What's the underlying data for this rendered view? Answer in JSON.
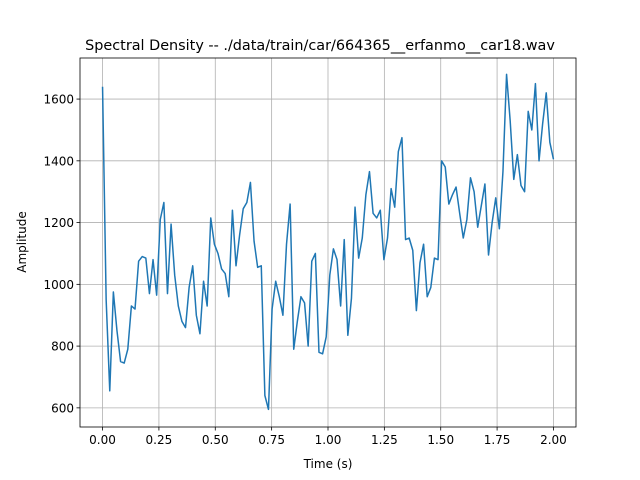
{
  "chart_data": {
    "type": "line",
    "title": "Spectral Density -- ./data/train/car/664365__erfanmo__car18.wav",
    "x_label": "Time (s)",
    "y_label": "Amplitude",
    "x": [
      0,
      0.016,
      0.032,
      0.048,
      0.064,
      0.08,
      0.096,
      0.112,
      0.128,
      0.144,
      0.16,
      0.176,
      0.192,
      0.208,
      0.224,
      0.24,
      0.256,
      0.272,
      0.288,
      0.304,
      0.32,
      0.336,
      0.352,
      0.368,
      0.384,
      0.4,
      0.416,
      0.432,
      0.448,
      0.464,
      0.48,
      0.496,
      0.512,
      0.528,
      0.544,
      0.56,
      0.576,
      0.592,
      0.608,
      0.624,
      0.64,
      0.656,
      0.672,
      0.688,
      0.704,
      0.72,
      0.736,
      0.752,
      0.768,
      0.784,
      0.8,
      0.816,
      0.832,
      0.848,
      0.864,
      0.88,
      0.896,
      0.912,
      0.928,
      0.944,
      0.96,
      0.976,
      0.992,
      1.008,
      1.024,
      1.04,
      1.056,
      1.072,
      1.088,
      1.104,
      1.12,
      1.136,
      1.152,
      1.168,
      1.184,
      1.2,
      1.216,
      1.232,
      1.248,
      1.264,
      1.28,
      1.296,
      1.312,
      1.328,
      1.344,
      1.36,
      1.376,
      1.392,
      1.408,
      1.424,
      1.44,
      1.456,
      1.472,
      1.488,
      1.504,
      1.52,
      1.536,
      1.552,
      1.568,
      1.584,
      1.6,
      1.616,
      1.632,
      1.648,
      1.664,
      1.68,
      1.696,
      1.712,
      1.728,
      1.744,
      1.76,
      1.776,
      1.792,
      1.808,
      1.824,
      1.84,
      1.856,
      1.872,
      1.888,
      1.904,
      1.92,
      1.936,
      1.952,
      1.968,
      1.984,
      2.0
    ],
    "series": [
      {
        "color": "#1f77b4",
        "values": [
          1640,
          950,
          655,
          975,
          850,
          750,
          745,
          790,
          930,
          920,
          1075,
          1090,
          1085,
          970,
          1080,
          965,
          1210,
          1265,
          970,
          1195,
          1030,
          930,
          880,
          860,
          990,
          1060,
          900,
          840,
          1010,
          930,
          1215,
          1130,
          1100,
          1050,
          1035,
          960,
          1240,
          1060,
          1160,
          1245,
          1265,
          1330,
          1140,
          1055,
          1060,
          640,
          595,
          920,
          1010,
          960,
          900,
          1130,
          1260,
          790,
          880,
          960,
          940,
          800,
          1075,
          1100,
          780,
          775,
          830,
          1030,
          1115,
          1080,
          930,
          1145,
          835,
          955,
          1250,
          1085,
          1150,
          1290,
          1365,
          1230,
          1215,
          1240,
          1080,
          1150,
          1310,
          1250,
          1430,
          1475,
          1145,
          1150,
          1110,
          915,
          1070,
          1130,
          960,
          990,
          1085,
          1080,
          1400,
          1380,
          1260,
          1290,
          1315,
          1230,
          1150,
          1210,
          1345,
          1300,
          1185,
          1255,
          1325,
          1095,
          1200,
          1280,
          1180,
          1365,
          1680,
          1530,
          1340,
          1420,
          1320,
          1300,
          1560,
          1500,
          1650,
          1400,
          1520,
          1620,
          1460,
          1405
        ]
      }
    ],
    "xlim": [
      -0.1,
      2.1
    ],
    "ylim": [
      538,
      1733
    ],
    "xticks": [
      {
        "value": 0,
        "label": "0.00"
      },
      {
        "value": 0.25,
        "label": "0.25"
      },
      {
        "value": 0.5,
        "label": "0.50"
      },
      {
        "value": 0.75,
        "label": "0.75"
      },
      {
        "value": 1,
        "label": "1.00"
      },
      {
        "value": 1.25,
        "label": "1.25"
      },
      {
        "value": 1.5,
        "label": "1.50"
      },
      {
        "value": 1.75,
        "label": "1.75"
      },
      {
        "value": 2,
        "label": "2.00"
      }
    ],
    "yticks": [
      600,
      800,
      1000,
      1200,
      1400,
      1600
    ],
    "grid": true
  }
}
